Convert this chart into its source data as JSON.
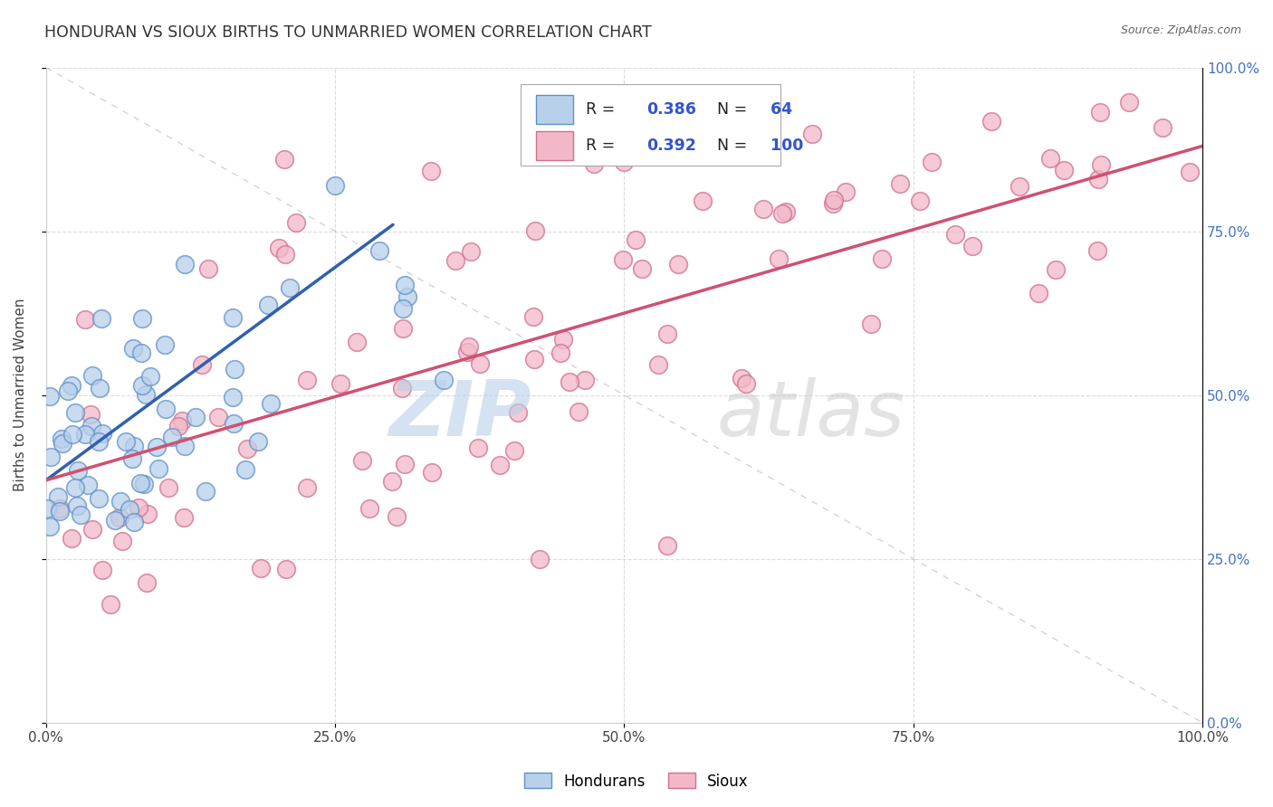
{
  "title": "HONDURAN VS SIOUX BIRTHS TO UNMARRIED WOMEN CORRELATION CHART",
  "source_text": "Source: ZipAtlas.com",
  "ylabel": "Births to Unmarried Women",
  "xlim": [
    0,
    1
  ],
  "ylim": [
    0,
    1
  ],
  "xtick_labels": [
    "0.0%",
    "25.0%",
    "50.0%",
    "75.0%",
    "100.0%"
  ],
  "xtick_vals": [
    0,
    0.25,
    0.5,
    0.75,
    1.0
  ],
  "ytick_labels": [
    "0.0%",
    "25.0%",
    "50.0%",
    "75.0%",
    "100.0%"
  ],
  "ytick_vals": [
    0,
    0.25,
    0.5,
    0.75,
    1.0
  ],
  "honduran_fill": "#b8d0ea",
  "honduran_edge": "#6090c8",
  "sioux_fill": "#f2b8c8",
  "sioux_edge": "#d07090",
  "honduran_trend_color": "#3060b0",
  "sioux_trend_color": "#d05070",
  "R_honduran": 0.386,
  "N_honduran": 64,
  "R_sioux": 0.392,
  "N_sioux": 100,
  "legend_label_1": "Hondurans",
  "legend_label_2": "Sioux",
  "legend_text_color": "#3355cc",
  "watermark_zip_color": "#b8cfe8",
  "watermark_atlas_color": "#bbbbbb",
  "title_color": "#333333",
  "source_color": "#666666",
  "right_tick_color": "#4472c4",
  "grid_color": "#d8d8d8"
}
